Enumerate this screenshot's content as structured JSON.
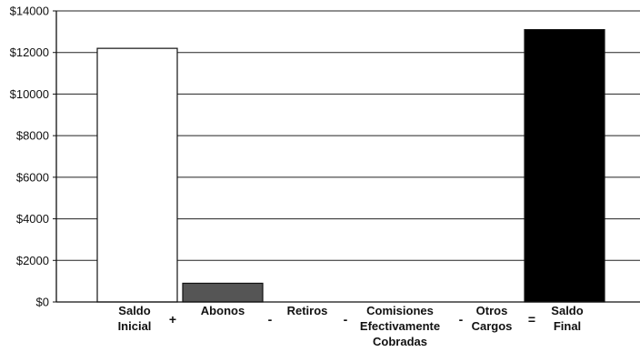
{
  "chart_data": {
    "type": "bar",
    "title": "",
    "xlabel": "",
    "ylabel": "",
    "ylim": [
      0,
      14000
    ],
    "grid": true,
    "legend": "none",
    "y_ticks": [
      0,
      2000,
      4000,
      6000,
      8000,
      10000,
      12000,
      14000
    ],
    "y_tick_labels": [
      "$0",
      "$2000",
      "$4000",
      "$6000",
      "$8000",
      "$10000",
      "$12000",
      "$14000"
    ],
    "categories": [
      [
        "Saldo",
        "Inicial"
      ],
      [
        "Abonos"
      ],
      [
        "Retiros"
      ],
      [
        "Comisiones",
        "Efectivamente",
        "Cobradas"
      ],
      [
        "Otros",
        "Cargos"
      ],
      [
        "Saldo",
        "Final"
      ]
    ],
    "operators": [
      "+",
      "-",
      "-",
      "-",
      "="
    ],
    "values": [
      12200,
      900,
      0,
      0,
      0,
      13100
    ],
    "bar_colors": [
      "#ffffff",
      "#555555",
      "#333333",
      "#333333",
      "#333333",
      "#000000"
    ]
  }
}
